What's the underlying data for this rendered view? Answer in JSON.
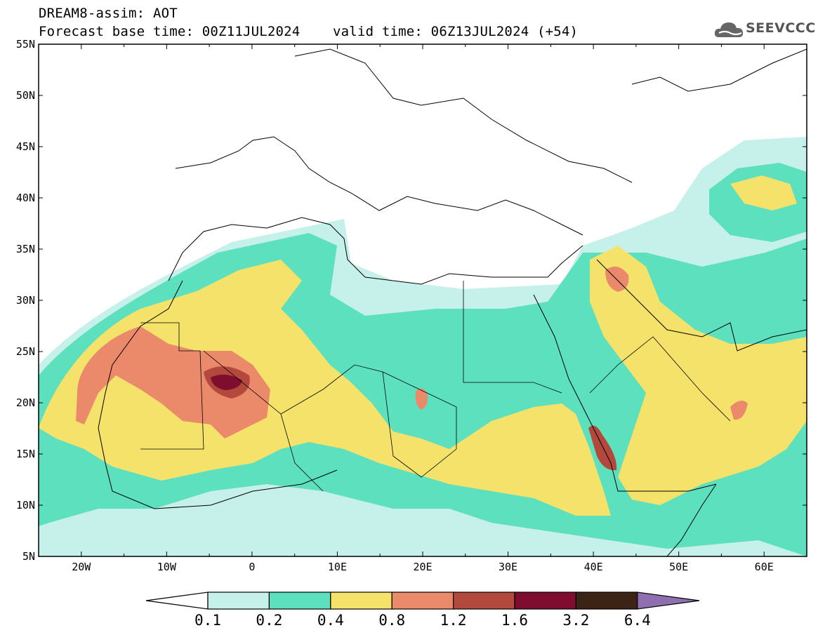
{
  "header": {
    "title": "DREAM8-assim: AOT",
    "base_label": "Forecast base time: 00Z11JUL2024",
    "valid_label": "valid time: 06Z13JUL2024 (+54)"
  },
  "logo": {
    "text": "SEEVCCC"
  },
  "map": {
    "lat_labels": [
      "55N",
      "50N",
      "45N",
      "40N",
      "35N",
      "30N",
      "25N",
      "20N",
      "15N",
      "10N",
      "5N"
    ],
    "lon_labels": [
      "20W",
      "10W",
      "0",
      "10E",
      "20E",
      "30E",
      "40E",
      "50E",
      "60E"
    ]
  },
  "colorbar": {
    "colors": [
      "#ffffff",
      "#c6f0ea",
      "#5ce0be",
      "#f5e26b",
      "#eb8a6a",
      "#b2493c",
      "#7e0d2f",
      "#3b2415",
      "#8f6fb0"
    ],
    "labels": [
      "0.1",
      "0.2",
      "0.4",
      "0.8",
      "1.2",
      "1.6",
      "3.2",
      "6.4"
    ]
  }
}
